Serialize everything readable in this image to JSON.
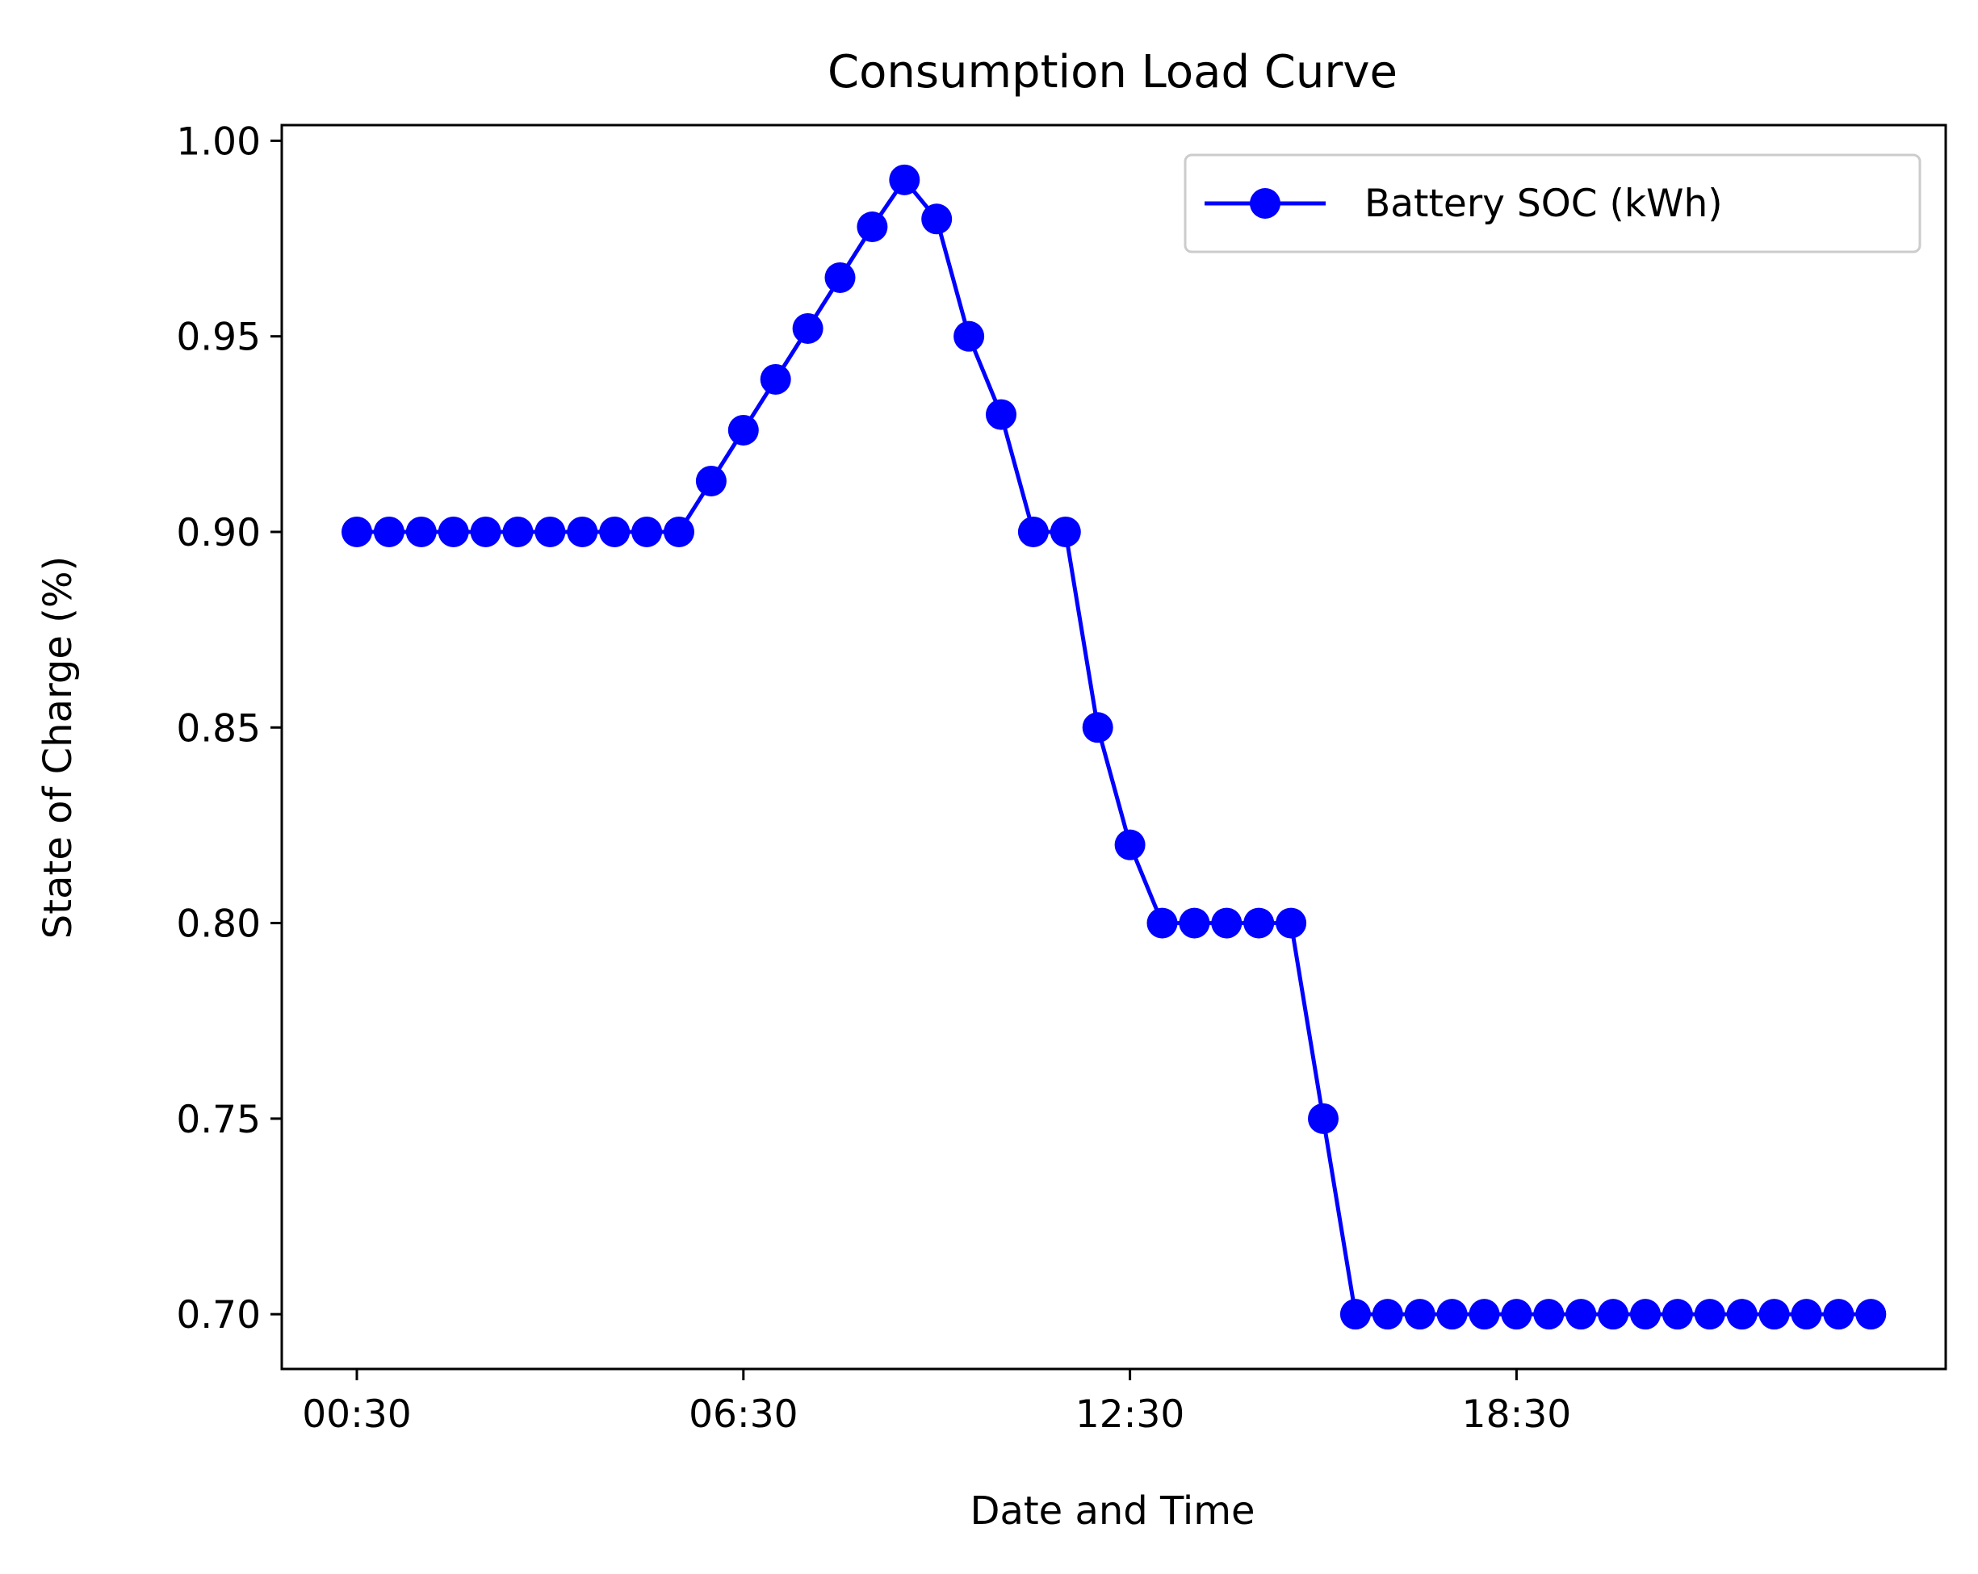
{
  "chart_data": {
    "type": "line",
    "title": "Consumption Load Curve",
    "xlabel": "Date and Time",
    "ylabel": "State of Charge (%)",
    "ylim": [
      0.686,
      1.004
    ],
    "yticks": [
      "0.70",
      "0.75",
      "0.80",
      "0.85",
      "0.90",
      "0.95",
      "1.00"
    ],
    "xticks": [
      "00:30",
      "06:30",
      "12:30",
      "18:30"
    ],
    "x": [
      "00:30",
      "01:00",
      "01:30",
      "02:00",
      "02:30",
      "03:00",
      "03:30",
      "04:00",
      "04:30",
      "05:00",
      "05:30",
      "06:00",
      "06:30",
      "07:00",
      "07:30",
      "08:00",
      "08:30",
      "09:00",
      "09:30",
      "10:00",
      "10:30",
      "11:00",
      "11:30",
      "12:00",
      "12:30",
      "13:00",
      "13:30",
      "14:00",
      "14:30",
      "15:00",
      "15:30",
      "16:00",
      "16:30",
      "17:00",
      "17:30",
      "18:00",
      "18:30",
      "19:00",
      "19:30",
      "20:00",
      "20:30",
      "21:00",
      "21:30",
      "22:00",
      "22:30",
      "23:00",
      "23:30",
      "00:00"
    ],
    "series": [
      {
        "name": "Battery SOC (kWh)",
        "color": "#0000ff",
        "marker": "circle",
        "values": [
          0.9,
          0.9,
          0.9,
          0.9,
          0.9,
          0.9,
          0.9,
          0.9,
          0.9,
          0.9,
          0.9,
          0.913,
          0.926,
          0.939,
          0.952,
          0.965,
          0.978,
          0.99,
          0.98,
          0.95,
          0.93,
          0.9,
          0.9,
          0.85,
          0.82,
          0.8,
          0.8,
          0.8,
          0.8,
          0.8,
          0.75,
          0.7,
          0.7,
          0.7,
          0.7,
          0.7,
          0.7,
          0.7,
          0.7,
          0.7,
          0.7,
          0.7,
          0.7,
          0.7,
          0.7,
          0.7,
          0.7,
          0.7
        ]
      }
    ],
    "grid": false,
    "legend_position": "top-right"
  }
}
